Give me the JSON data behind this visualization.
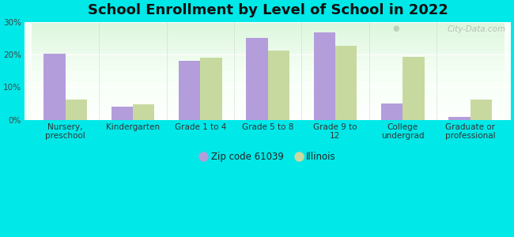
{
  "title": "School Enrollment by Level of School in 2022",
  "categories": [
    "Nursery,\npreschool",
    "Kindergarten",
    "Grade 1 to 4",
    "Grade 5 to 8",
    "Grade 9 to\n12",
    "College\nundergrad",
    "Graduate or\nprofessional"
  ],
  "zip_values": [
    20.2,
    4.0,
    18.2,
    25.1,
    26.8,
    4.9,
    0.8
  ],
  "il_values": [
    6.2,
    4.8,
    19.0,
    21.2,
    22.8,
    19.2,
    6.1
  ],
  "zip_color": "#b39ddb",
  "il_color": "#c8d9a0",
  "background_color": "#00e8e8",
  "plot_bg_top": "#e8ffe8",
  "plot_bg_bottom": "#f8fff8",
  "ylim": [
    0,
    30
  ],
  "yticks": [
    0,
    10,
    20,
    30
  ],
  "ytick_labels": [
    "0%",
    "10%",
    "20%",
    "30%"
  ],
  "legend_zip_label": "Zip code 61039",
  "legend_il_label": "Illinois",
  "watermark": "City-Data.com",
  "title_fontsize": 13,
  "tick_fontsize": 7.5,
  "legend_fontsize": 8.5,
  "bar_width": 0.32
}
